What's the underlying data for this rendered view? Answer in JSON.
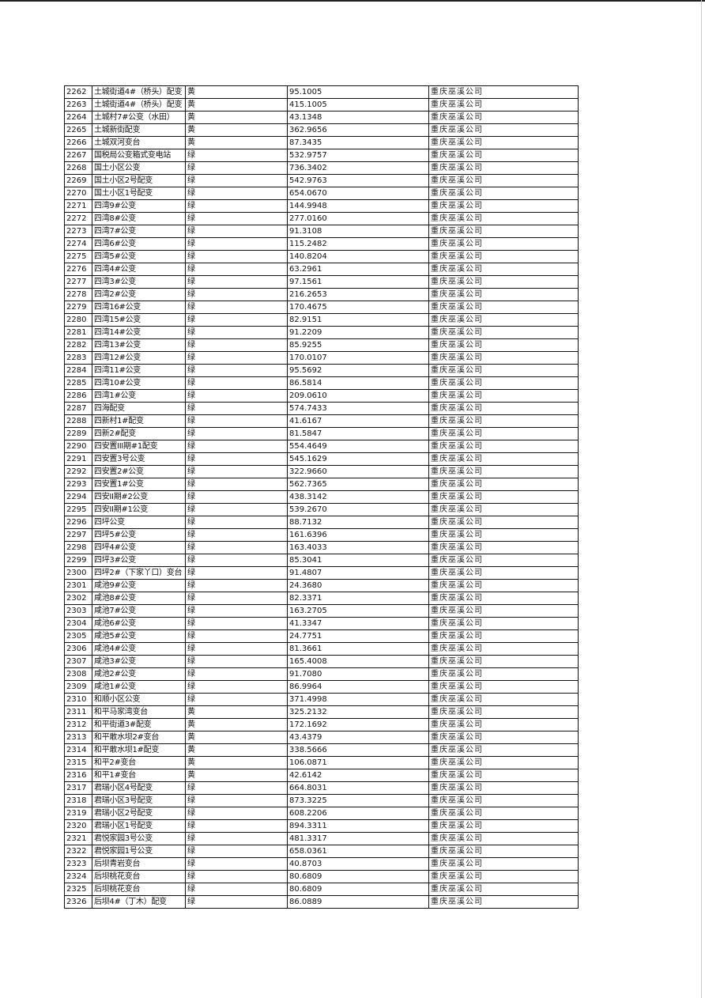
{
  "table": {
    "rows": [
      [
        "2262",
        "土城街道4#（桥头）配变",
        "黄",
        "95.1005",
        "重庆巫溪公司"
      ],
      [
        "2263",
        "土城街道4#（桥头）配变",
        "黄",
        "415.1005",
        "重庆巫溪公司"
      ],
      [
        "2264",
        "土城村7#公变（水田）",
        "黄",
        "43.1348",
        "重庆巫溪公司"
      ],
      [
        "2265",
        "土城新街配变",
        "黄",
        "362.9656",
        "重庆巫溪公司"
      ],
      [
        "2266",
        "土城双河变台",
        "黄",
        "87.3435",
        "重庆巫溪公司"
      ],
      [
        "2267",
        "国税局公变箱式变电站",
        "绿",
        "532.9757",
        "重庆巫溪公司"
      ],
      [
        "2268",
        "国土小区公变",
        "绿",
        "736.3402",
        "重庆巫溪公司"
      ],
      [
        "2269",
        "国土小区2号配变",
        "绿",
        "542.9763",
        "重庆巫溪公司"
      ],
      [
        "2270",
        "国土小区1号配变",
        "绿",
        "654.0670",
        "重庆巫溪公司"
      ],
      [
        "2271",
        "四湾9#公变",
        "绿",
        "144.9948",
        "重庆巫溪公司"
      ],
      [
        "2272",
        "四湾8#公变",
        "绿",
        "277.0160",
        "重庆巫溪公司"
      ],
      [
        "2273",
        "四湾7#公变",
        "绿",
        "91.3108",
        "重庆巫溪公司"
      ],
      [
        "2274",
        "四湾6#公变",
        "绿",
        "115.2482",
        "重庆巫溪公司"
      ],
      [
        "2275",
        "四湾5#公变",
        "绿",
        "140.8204",
        "重庆巫溪公司"
      ],
      [
        "2276",
        "四湾4#公变",
        "绿",
        "63.2961",
        "重庆巫溪公司"
      ],
      [
        "2277",
        "四湾3#公变",
        "绿",
        "97.1561",
        "重庆巫溪公司"
      ],
      [
        "2278",
        "四湾2#公变",
        "绿",
        "216.2653",
        "重庆巫溪公司"
      ],
      [
        "2279",
        "四湾16#公变",
        "绿",
        "170.4675",
        "重庆巫溪公司"
      ],
      [
        "2280",
        "四湾15#公变",
        "绿",
        "82.9151",
        "重庆巫溪公司"
      ],
      [
        "2281",
        "四湾14#公变",
        "绿",
        "91.2209",
        "重庆巫溪公司"
      ],
      [
        "2282",
        "四湾13#公变",
        "绿",
        "85.9255",
        "重庆巫溪公司"
      ],
      [
        "2283",
        "四湾12#公变",
        "绿",
        "170.0107",
        "重庆巫溪公司"
      ],
      [
        "2284",
        "四湾11#公变",
        "绿",
        "95.5692",
        "重庆巫溪公司"
      ],
      [
        "2285",
        "四湾10#公变",
        "绿",
        "86.5814",
        "重庆巫溪公司"
      ],
      [
        "2286",
        "四湾1#公变",
        "绿",
        "209.0610",
        "重庆巫溪公司"
      ],
      [
        "2287",
        "四海配变",
        "绿",
        "574.7433",
        "重庆巫溪公司"
      ],
      [
        "2288",
        "四新村1#配变",
        "绿",
        "41.6167",
        "重庆巫溪公司"
      ],
      [
        "2289",
        "四新2#配变",
        "绿",
        "81.5847",
        "重庆巫溪公司"
      ],
      [
        "2290",
        "四安置III期#1配变",
        "绿",
        "554.4649",
        "重庆巫溪公司"
      ],
      [
        "2291",
        "四安置3号公变",
        "绿",
        "545.1629",
        "重庆巫溪公司"
      ],
      [
        "2292",
        "四安置2#公变",
        "绿",
        "322.9660",
        "重庆巫溪公司"
      ],
      [
        "2293",
        "四安置1#公变",
        "绿",
        "562.7365",
        "重庆巫溪公司"
      ],
      [
        "2294",
        "四安II期#2公变",
        "绿",
        "438.3142",
        "重庆巫溪公司"
      ],
      [
        "2295",
        "四安II期#1公变",
        "绿",
        "539.2670",
        "重庆巫溪公司"
      ],
      [
        "2296",
        "四坪公变",
        "绿",
        "88.7132",
        "重庆巫溪公司"
      ],
      [
        "2297",
        "四坪5#公变",
        "绿",
        "161.6396",
        "重庆巫溪公司"
      ],
      [
        "2298",
        "四坪4#公变",
        "绿",
        "163.4033",
        "重庆巫溪公司"
      ],
      [
        "2299",
        "四坪3#公变",
        "绿",
        "85.3041",
        "重庆巫溪公司"
      ],
      [
        "2300",
        "四坪2#（下家丫口）变台",
        "绿",
        "91.4807",
        "重庆巫溪公司"
      ],
      [
        "2301",
        "咸池9#公变",
        "绿",
        "24.3680",
        "重庆巫溪公司"
      ],
      [
        "2302",
        "咸池8#公变",
        "绿",
        "82.3371",
        "重庆巫溪公司"
      ],
      [
        "2303",
        "咸池7#公变",
        "绿",
        "163.2705",
        "重庆巫溪公司"
      ],
      [
        "2304",
        "咸池6#公变",
        "绿",
        "41.3347",
        "重庆巫溪公司"
      ],
      [
        "2305",
        "咸池5#公变",
        "绿",
        "24.7751",
        "重庆巫溪公司"
      ],
      [
        "2306",
        "咸池4#公变",
        "绿",
        "81.3661",
        "重庆巫溪公司"
      ],
      [
        "2307",
        "咸池3#公变",
        "绿",
        "165.4008",
        "重庆巫溪公司"
      ],
      [
        "2308",
        "咸池2#公变",
        "绿",
        "91.7080",
        "重庆巫溪公司"
      ],
      [
        "2309",
        "咸池1#公变",
        "绿",
        "86.9964",
        "重庆巫溪公司"
      ],
      [
        "2310",
        "和顺小区公变",
        "绿",
        "371.4998",
        "重庆巫溪公司"
      ],
      [
        "2311",
        "和平马家湾变台",
        "黄",
        "325.2132",
        "重庆巫溪公司"
      ],
      [
        "2312",
        "和平街道3#配变",
        "黄",
        "172.1692",
        "重庆巫溪公司"
      ],
      [
        "2313",
        "和平敢水坝2#变台",
        "黄",
        "43.4379",
        "重庆巫溪公司"
      ],
      [
        "2314",
        "和平敢水坝1#配变",
        "黄",
        "338.5666",
        "重庆巫溪公司"
      ],
      [
        "2315",
        "和平2#变台",
        "黄",
        "106.0871",
        "重庆巫溪公司"
      ],
      [
        "2316",
        "和平1#变台",
        "黄",
        "42.6142",
        "重庆巫溪公司"
      ],
      [
        "2317",
        "君瑞小区4号配变",
        "绿",
        "664.8031",
        "重庆巫溪公司"
      ],
      [
        "2318",
        "君瑞小区3号配变",
        "绿",
        "873.3225",
        "重庆巫溪公司"
      ],
      [
        "2319",
        "君瑞小区2号配变",
        "绿",
        "608.2206",
        "重庆巫溪公司"
      ],
      [
        "2320",
        "君瑞小区1号配变",
        "绿",
        "894.3311",
        "重庆巫溪公司"
      ],
      [
        "2321",
        "君悦家园3号公变",
        "绿",
        "481.3317",
        "重庆巫溪公司"
      ],
      [
        "2322",
        "君悦家园1号公变",
        "绿",
        "658.0361",
        "重庆巫溪公司"
      ],
      [
        "2323",
        "后坝青岩变台",
        "绿",
        "40.8703",
        "重庆巫溪公司"
      ],
      [
        "2324",
        "后坝桃花变台",
        "绿",
        "80.6809",
        "重庆巫溪公司"
      ],
      [
        "2325",
        "后坝桃花变台",
        "绿",
        "80.6809",
        "重庆巫溪公司"
      ],
      [
        "2326",
        "后坝4#（丁木）配变",
        "绿",
        "86.0889",
        "重庆巫溪公司"
      ]
    ]
  }
}
